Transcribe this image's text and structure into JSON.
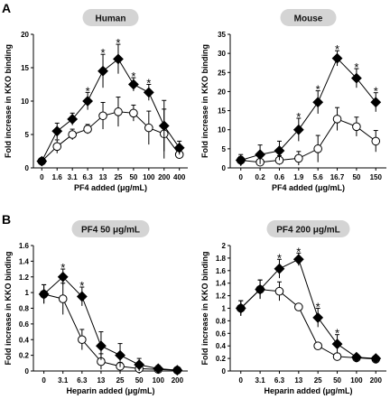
{
  "panels": [
    {
      "letter": "A"
    },
    {
      "letter": "B"
    }
  ],
  "chart_data": [
    {
      "type": "line",
      "title": "Human",
      "xlabel": "PF4 added (μg/mL)",
      "ylabel": "Fold increase in KKO binding",
      "categories": [
        "0",
        "1.6",
        "3.1",
        "6.3",
        "13",
        "25",
        "50",
        "100",
        "200",
        "400"
      ],
      "ylim": [
        0,
        20
      ],
      "yticks": [
        0,
        5,
        10,
        15,
        20
      ],
      "series": [
        {
          "marker": "filled-diamond",
          "values": [
            1,
            5.5,
            7.3,
            10,
            14.5,
            16.3,
            12.5,
            11.3,
            6.3,
            3
          ],
          "errors": [
            0.4,
            1.2,
            0.9,
            1.3,
            2.5,
            2.2,
            1.0,
            1.2,
            3.8,
            1.0
          ]
        },
        {
          "marker": "open-circle",
          "values": [
            1,
            3.2,
            5,
            5.8,
            7.8,
            8.4,
            8.2,
            6,
            5.1,
            2
          ],
          "errors": [
            0.3,
            1.0,
            0.8,
            0.7,
            2.0,
            2.2,
            1.2,
            2.5,
            3.7,
            0.6
          ]
        }
      ],
      "significance": [
        "*",
        "*",
        "*",
        "*",
        "*"
      ],
      "significance_at": [
        "6.3",
        "13",
        "25",
        "50",
        "100"
      ]
    },
    {
      "type": "line",
      "title": "Mouse",
      "xlabel": "PF4 added (μg/mL)",
      "ylabel": "Fold increase in KKO binding",
      "categories": [
        "0",
        "0.2",
        "0.6",
        "1.9",
        "5.6",
        "16.7",
        "50",
        "150"
      ],
      "ylim": [
        0,
        35
      ],
      "yticks": [
        0,
        5,
        10,
        15,
        20,
        25,
        30,
        35
      ],
      "series": [
        {
          "marker": "filled-diamond",
          "values": [
            2,
            3.5,
            4.5,
            10,
            17.2,
            28.7,
            23.5,
            17.2
          ],
          "errors": [
            1.5,
            2.5,
            2.5,
            3.0,
            3.0,
            2.0,
            2.5,
            2.5
          ]
        },
        {
          "marker": "open-circle",
          "values": [
            2,
            1.5,
            2,
            2.5,
            5,
            12.8,
            10.8,
            7
          ],
          "errors": [
            1.0,
            0.8,
            1.2,
            1.8,
            3.5,
            3.0,
            2.5,
            2.8
          ]
        }
      ],
      "significance": [
        "*",
        "*",
        "*",
        "*",
        "*"
      ],
      "significance_at": [
        "1.9",
        "5.6",
        "16.7",
        "50",
        "150"
      ]
    },
    {
      "type": "line",
      "title": "PF4 50 μg/mL",
      "xlabel": "Heparin added (μg/mL)",
      "ylabel": "Fold increase in KKO binding",
      "categories": [
        "0",
        "3.1",
        "6.3",
        "13",
        "25",
        "50",
        "100",
        "200"
      ],
      "ylim": [
        0,
        1.6
      ],
      "yticks": [
        0,
        0.2,
        0.4,
        0.6,
        0.8,
        1,
        1.2,
        1.4,
        1.6
      ],
      "ytick_labels": [
        "0",
        "0.2",
        "0.4",
        "0.6",
        "0.8",
        "1",
        "1.2",
        "1.4",
        "1.6"
      ],
      "series": [
        {
          "marker": "filled-diamond",
          "values": [
            0.98,
            1.2,
            0.95,
            0.32,
            0.2,
            0.08,
            0.03,
            0.01
          ],
          "errors": [
            0.12,
            0.1,
            0.12,
            0.18,
            0.15,
            0.08,
            0.04,
            0.02
          ]
        },
        {
          "marker": "open-circle",
          "values": [
            0.98,
            0.92,
            0.4,
            0.12,
            0.06,
            0.03,
            0.02,
            0.01
          ],
          "errors": [
            0.12,
            0.2,
            0.13,
            0.1,
            0.05,
            0.03,
            0.02,
            0.01
          ]
        }
      ],
      "significance": [
        "*",
        "*"
      ],
      "significance_at": [
        "3.1",
        "6.3"
      ]
    },
    {
      "type": "line",
      "title": "PF4 200 μg/mL",
      "xlabel": "Heparin added (μg/mL)",
      "ylabel": "Fold increase in KKO binding",
      "categories": [
        "0",
        "3.1",
        "6.3",
        "13",
        "25",
        "50",
        "100",
        "200"
      ],
      "ylim": [
        0,
        2
      ],
      "yticks": [
        0,
        0.2,
        0.4,
        0.6,
        0.8,
        1,
        1.2,
        1.4,
        1.6,
        1.8,
        2
      ],
      "ytick_labels": [
        "0",
        "0.2",
        "0.4",
        "0.6",
        "0.8",
        "1",
        "1.2",
        "1.4",
        "1.6",
        "1.8",
        "2"
      ],
      "series": [
        {
          "marker": "filled-diamond",
          "values": [
            1,
            1.3,
            1.63,
            1.78,
            0.85,
            0.43,
            0.22,
            0.2
          ],
          "errors": [
            0.12,
            0.15,
            0.15,
            0.1,
            0.15,
            0.15,
            0.04,
            0.04
          ]
        },
        {
          "marker": "open-circle",
          "values": [
            1,
            1.3,
            1.27,
            1.02,
            0.4,
            0.23,
            0.21,
            0.19
          ],
          "errors": [
            0.12,
            0.15,
            0.15,
            0.05,
            0.05,
            0.04,
            0.03,
            0.03
          ]
        }
      ],
      "significance": [
        "*",
        "*",
        "*",
        "*"
      ],
      "significance_at": [
        "6.3",
        "13",
        "25",
        "25"
      ]
    }
  ]
}
